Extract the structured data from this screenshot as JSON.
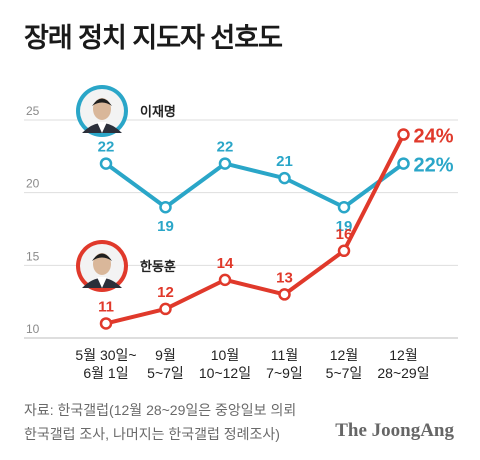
{
  "title": "장래 정치 지도자 선호도",
  "source_line1": "자료: 한국갤럽(12월 28~29일은 중앙일보 의뢰",
  "source_line2": "한국갤럽 조사, 나머지는 한국갤럽 정례조사)",
  "brand": "The JoongAng",
  "chart_data": {
    "type": "line",
    "categories": [
      [
        "5월 30일~",
        "6월 1일"
      ],
      [
        "9월",
        "5~7일"
      ],
      [
        "10월",
        "10~12일"
      ],
      [
        "11월",
        "7~9일"
      ],
      [
        "12월",
        "5~7일"
      ],
      [
        "12월",
        "28~29일"
      ]
    ],
    "ylim": [
      10,
      25
    ],
    "yticks": [
      10,
      15,
      20,
      25
    ],
    "grid": true,
    "series": [
      {
        "name": "이재명",
        "color": "#2aa6c8",
        "values": [
          22,
          19,
          22,
          21,
          19,
          22
        ],
        "labels": [
          "22",
          "19",
          "22",
          "21",
          "19",
          "22%"
        ],
        "icon": "person-photo-icon"
      },
      {
        "name": "한동훈",
        "color": "#e0392b",
        "values": [
          11,
          12,
          14,
          13,
          16,
          24
        ],
        "labels": [
          "11",
          "12",
          "14",
          "13",
          "16",
          "24%"
        ],
        "icon": "person-photo-icon"
      }
    ]
  }
}
